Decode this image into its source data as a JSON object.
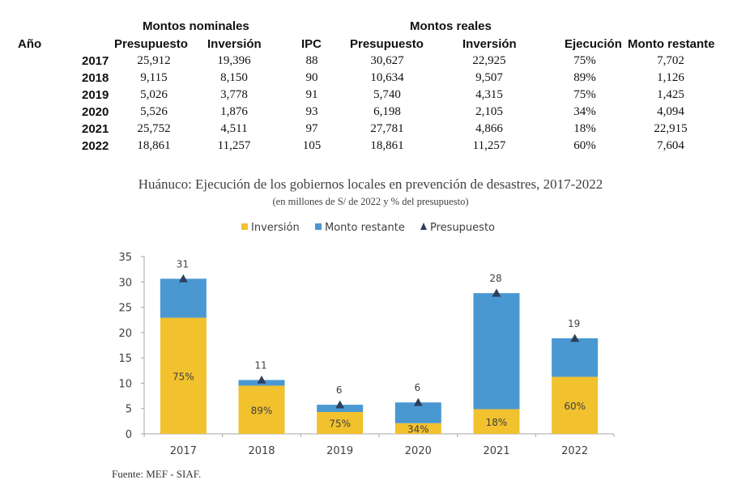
{
  "table": {
    "group_headers": {
      "nominal": "Montos nominales",
      "real": "Montos reales"
    },
    "columns": [
      "Año",
      "Presupuesto",
      "Inversión",
      "IPC",
      "Presupuesto",
      "Inversión",
      "Ejecución",
      "Monto restante"
    ],
    "rows": [
      [
        "2017",
        "25,912",
        "19,396",
        "88",
        "30,627",
        "22,925",
        "75%",
        "7,702"
      ],
      [
        "2018",
        "9,115",
        "8,150",
        "90",
        "10,634",
        "9,507",
        "89%",
        "1,126"
      ],
      [
        "2019",
        "5,026",
        "3,778",
        "91",
        "5,740",
        "4,315",
        "75%",
        "1,425"
      ],
      [
        "2020",
        "5,526",
        "1,876",
        "93",
        "6,198",
        "2,105",
        "34%",
        "4,094"
      ],
      [
        "2021",
        "25,752",
        "4,511",
        "97",
        "27,781",
        "4,866",
        "18%",
        "22,915"
      ],
      [
        "2022",
        "18,861",
        "11,257",
        "105",
        "18,861",
        "11,257",
        "60%",
        "7,604"
      ]
    ]
  },
  "source": "Fuente: MEF - SIAF.",
  "chart_data": {
    "type": "bar",
    "stacked": true,
    "title": "Huánuco: Ejecución de los gobiernos locales en prevención de desastres, 2017-2022",
    "subtitle": "(en millones de S/ de 2022 y % del presupuesto)",
    "xlabel": "",
    "ylabel": "",
    "categories": [
      "2017",
      "2018",
      "2019",
      "2020",
      "2021",
      "2022"
    ],
    "series": [
      {
        "name": "Inversión",
        "kind": "bar",
        "color": "#F2C12E",
        "values": [
          22.925,
          9.507,
          4.315,
          2.105,
          4.866,
          11.257
        ],
        "data_labels": [
          "75%",
          "89%",
          "75%",
          "34%",
          "18%",
          "60%"
        ]
      },
      {
        "name": "Monto restante",
        "kind": "bar",
        "color": "#4A98D2",
        "values": [
          7.702,
          1.126,
          1.425,
          4.094,
          22.915,
          7.604
        ]
      },
      {
        "name": "Presupuesto",
        "kind": "marker-triangle",
        "color": "#2E3F5C",
        "values": [
          30.627,
          10.634,
          5.74,
          6.198,
          27.781,
          18.861
        ],
        "data_labels": [
          "31",
          "11",
          "6",
          "6",
          "28",
          "19"
        ]
      }
    ],
    "ylim": [
      0,
      35
    ],
    "yticks": [
      0,
      5,
      10,
      15,
      20,
      25,
      30,
      35
    ],
    "grid": false,
    "legend_position": "top-center"
  }
}
